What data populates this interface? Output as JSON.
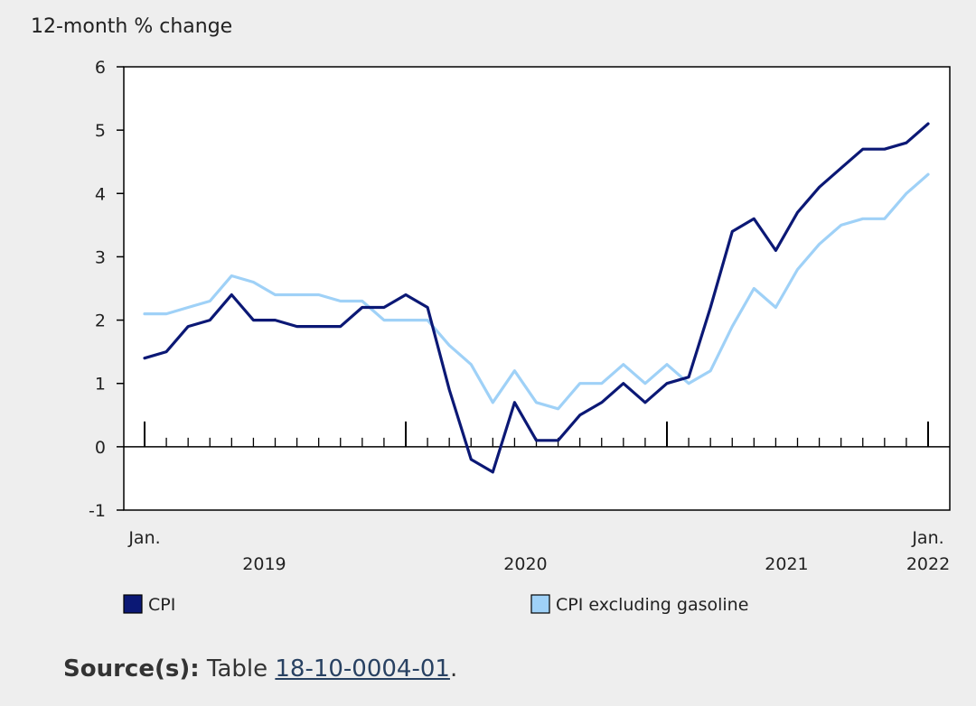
{
  "chart_data": {
    "type": "line",
    "y_title": "12-month % change",
    "ylim": [
      -1,
      6
    ],
    "y_ticks": [
      -1,
      0,
      1,
      2,
      3,
      4,
      5,
      6
    ],
    "x_first_label": "Jan.",
    "x_last_label_month": "Jan.",
    "x_last_label_year": "2022",
    "x_start": "2019-01",
    "x_end": "2022-01",
    "years": [
      "2019",
      "2020",
      "2021"
    ],
    "grid": false,
    "legend_position": "bottom",
    "series": [
      {
        "name": "CPI",
        "color": "#0b1875",
        "values": [
          1.4,
          1.5,
          1.9,
          2.0,
          2.4,
          2.0,
          2.0,
          1.9,
          1.9,
          1.9,
          2.2,
          2.2,
          2.4,
          2.2,
          0.9,
          -0.2,
          -0.4,
          0.7,
          0.1,
          0.1,
          0.5,
          0.7,
          1.0,
          0.7,
          1.0,
          1.1,
          2.2,
          3.4,
          3.6,
          3.1,
          3.7,
          4.1,
          4.4,
          4.7,
          4.7,
          4.8,
          5.1
        ]
      },
      {
        "name": "CPI excluding gasoline",
        "color": "#9fd1f7",
        "values": [
          2.1,
          2.1,
          2.2,
          2.3,
          2.7,
          2.6,
          2.4,
          2.4,
          2.4,
          2.3,
          2.3,
          2.0,
          2.0,
          2.0,
          1.6,
          1.3,
          0.7,
          1.2,
          0.7,
          0.6,
          1.0,
          1.0,
          1.3,
          1.0,
          1.3,
          1.0,
          1.2,
          1.9,
          2.5,
          2.2,
          2.8,
          3.2,
          3.5,
          3.6,
          3.6,
          4.0,
          4.3
        ]
      }
    ]
  },
  "source": {
    "label": "Source(s):",
    "text": "Table",
    "link": "18-10-0004-01",
    "end": "."
  }
}
